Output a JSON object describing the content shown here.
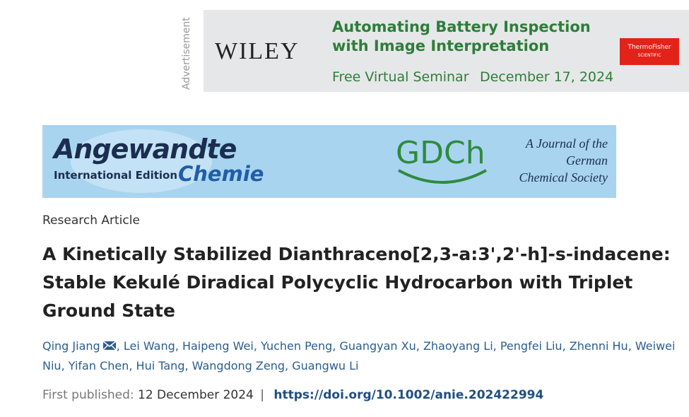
{
  "advertisement": {
    "label": "Advertisement",
    "brand": "WILEY",
    "headline": [
      "Automating Battery Inspection",
      "with Image Interpretation"
    ],
    "event": "Free Virtual Seminar",
    "date": "December 17, 2024",
    "sponsor": [
      "ThermoFisher",
      "SCIENTIFIC"
    ]
  },
  "journal": {
    "name": "Angewandte",
    "edition": "International Edition",
    "subname": "Chemie",
    "society_logo": "GDCh",
    "society": [
      "A Journal of the",
      "German",
      "Chemical Society"
    ]
  },
  "article": {
    "type": "Research Article",
    "title": "A Kinetically Stabilized Dianthraceno[2,3-a:3',2'-h]-s-indacene: Stable Kekulé Diradical Polycyclic Hydrocarbon with Triplet Ground State",
    "authors": [
      "Qing Jiang",
      "Lei Wang",
      "Haipeng Wei",
      "Yuchen Peng",
      "Guangyan Xu",
      "Zhaoyang Li",
      "Pengfei Liu",
      "Zhenni Hu",
      "Weiwei Niu",
      "Yifan Chen",
      "Hui Tang",
      "Wangdong Zeng",
      "Guangwu Li"
    ],
    "author_separator": ",",
    "published_label": "First published:",
    "published_date": "12 December 2024",
    "divider": "|",
    "doi": "https://doi.org/10.1002/anie.202422994"
  }
}
